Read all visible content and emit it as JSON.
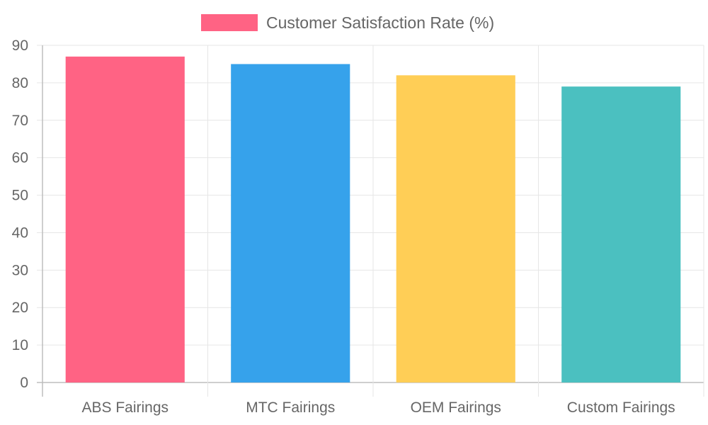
{
  "chart_data": {
    "type": "bar",
    "categories": [
      "ABS Fairings",
      "MTC Fairings",
      "OEM Fairings",
      "Custom Fairings"
    ],
    "series": [
      {
        "name": "Customer Satisfaction Rate (%)",
        "values": [
          87,
          85,
          82,
          79
        ],
        "colors": [
          "#ff6384",
          "#36a2eb",
          "#ffce56",
          "#4bc0c0"
        ]
      }
    ],
    "ylim": [
      0,
      90
    ],
    "yticks": [
      0,
      10,
      20,
      30,
      40,
      50,
      60,
      70,
      80,
      90
    ],
    "grid": true,
    "legend_position": "top-center",
    "legend_color": "#ff6384"
  }
}
